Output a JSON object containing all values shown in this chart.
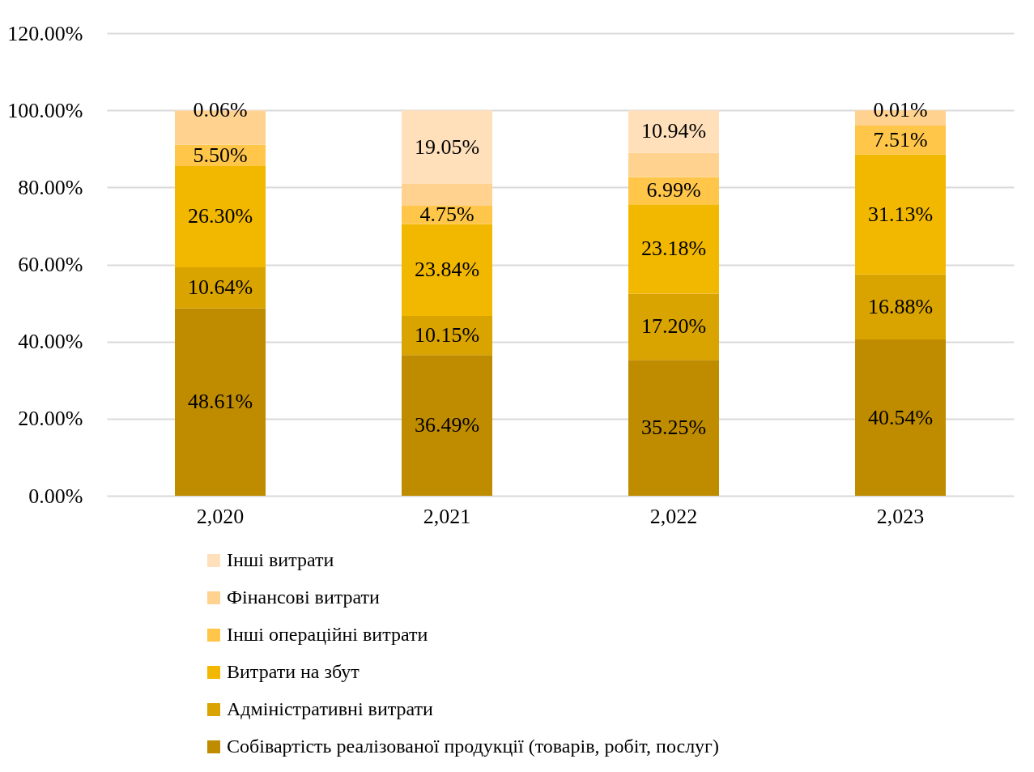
{
  "chart_data": {
    "type": "bar",
    "stacked": true,
    "categories": [
      "2,020",
      "2,021",
      "2,022",
      "2,023"
    ],
    "series": [
      {
        "name": "Собівартість реалізованої продукції (товарів, робіт, послуг)",
        "color": "#bf8c00",
        "values": [
          48.61,
          36.49,
          35.25,
          40.54
        ],
        "value_labels": [
          "48.61%",
          "36.49%",
          "35.25%",
          "40.54%"
        ]
      },
      {
        "name": "Адміністративні витрати",
        "color": "#d9a300",
        "values": [
          10.64,
          10.15,
          17.2,
          16.88
        ],
        "value_labels": [
          "10.64%",
          "10.15%",
          "17.20%",
          "16.88%"
        ]
      },
      {
        "name": "Витрати на збут",
        "color": "#f2b800",
        "values": [
          26.3,
          23.84,
          23.18,
          31.13
        ],
        "value_labels": [
          "26.30%",
          "23.84%",
          "23.18%",
          "31.13%"
        ]
      },
      {
        "name": "Інші операційні витрати",
        "color": "#ffc64a",
        "values": [
          5.5,
          4.75,
          6.99,
          7.51
        ],
        "value_labels": [
          "5.50%",
          "4.75%",
          "6.99%",
          "7.51%"
        ]
      },
      {
        "name": "Фінансові витрати",
        "color": "#ffd38f",
        "values": [
          8.9,
          5.7,
          6.4,
          3.9
        ],
        "value_labels": [
          null,
          null,
          null,
          null
        ]
      },
      {
        "name": "Інші витрати",
        "color": "#ffe0bb",
        "values": [
          0.06,
          19.05,
          10.94,
          0.01
        ],
        "value_labels": [
          "0.06%",
          "19.05%",
          "10.94%",
          "0.01%"
        ]
      }
    ],
    "ylim": [
      0,
      120
    ],
    "yticks": [
      {
        "value": 0,
        "label": "0.00%"
      },
      {
        "value": 20,
        "label": "20.00%"
      },
      {
        "value": 40,
        "label": "40.00%"
      },
      {
        "value": 60,
        "label": "60.00%"
      },
      {
        "value": 80,
        "label": "80.00%"
      },
      {
        "value": 100,
        "label": "100.00%"
      },
      {
        "value": 120,
        "label": "120.00%"
      }
    ],
    "grid": "y",
    "legend": "bottom"
  }
}
